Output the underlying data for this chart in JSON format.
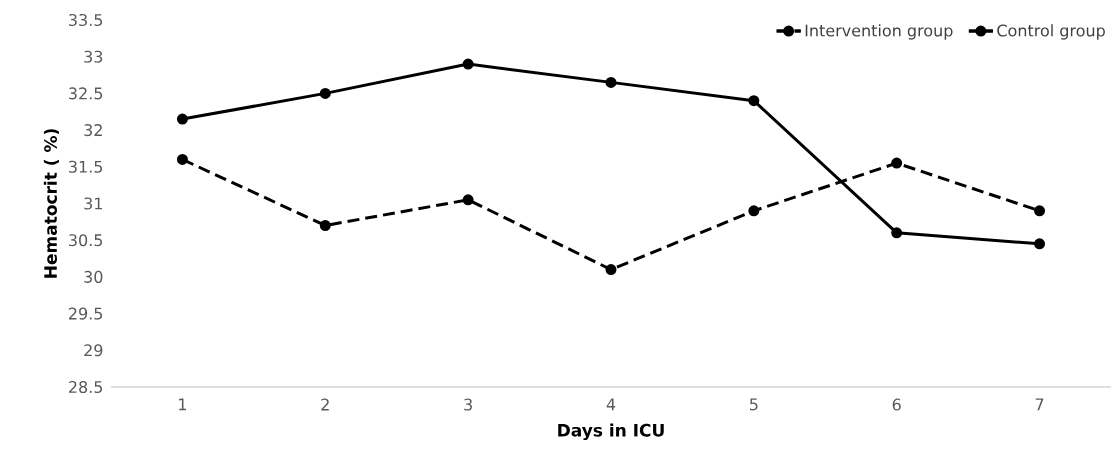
{
  "chart_data": {
    "type": "line",
    "xlabel": "Days in ICU",
    "ylabel": "Hematocrit ( %)",
    "categories": [
      "1",
      "2",
      "3",
      "4",
      "5",
      "6",
      "7"
    ],
    "series": [
      {
        "name": "Intervention group",
        "color": "#000000",
        "line_style": "dashed",
        "values": [
          31.6,
          30.7,
          31.05,
          30.1,
          30.9,
          31.55,
          30.9
        ]
      },
      {
        "name": "Control group",
        "color": "#000000",
        "line_style": "solid",
        "values": [
          32.15,
          32.5,
          32.9,
          32.65,
          32.4,
          30.6,
          30.45
        ]
      }
    ],
    "ylim": [
      28.5,
      33.5
    ],
    "yticks": [
      28.5,
      29,
      29.5,
      30,
      30.5,
      31,
      31.5,
      32,
      32.5,
      33,
      33.5
    ],
    "grid": false,
    "legend": "top right",
    "marker": "circle"
  }
}
